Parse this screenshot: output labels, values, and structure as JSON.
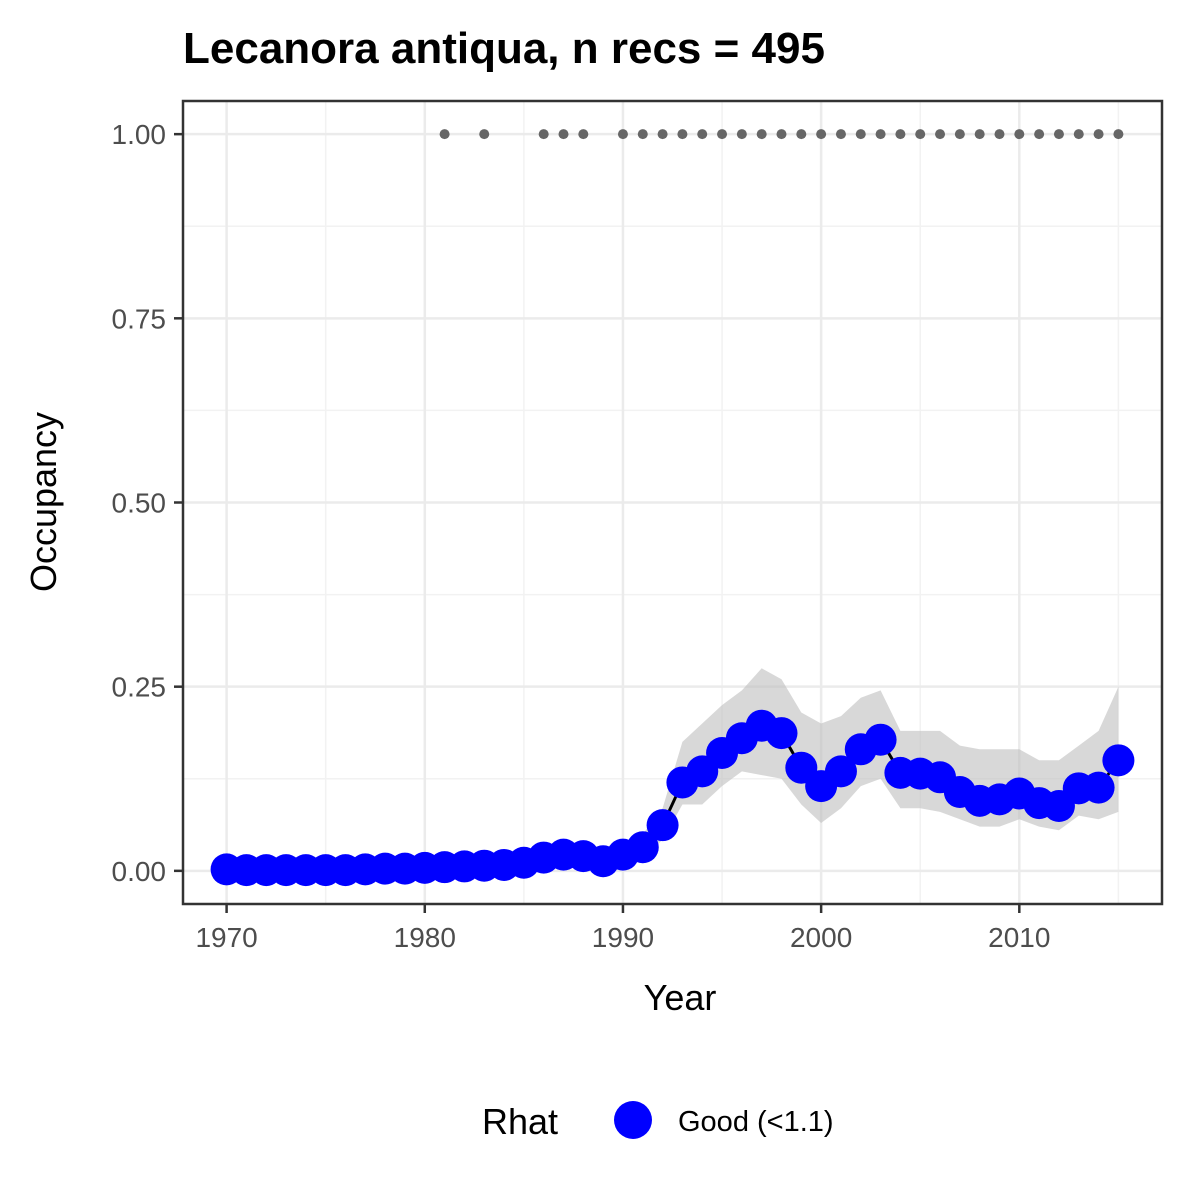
{
  "chart_data": {
    "type": "line",
    "title": "Lecanora antiqua, n recs = 495",
    "xlabel": "Year",
    "ylabel": "Occupancy",
    "xlim": [
      1967.8,
      2017.2
    ],
    "ylim": [
      -0.045,
      1.045
    ],
    "x_ticks": [
      1970,
      1980,
      1990,
      2000,
      2010
    ],
    "x_tick_labels": [
      "1970",
      "1980",
      "1990",
      "2000",
      "2010"
    ],
    "x_minor_ticks": [
      1975,
      1985,
      1995,
      2005,
      2015
    ],
    "y_ticks": [
      0,
      0.25,
      0.5,
      0.75,
      1.0
    ],
    "y_tick_labels": [
      "0.00",
      "0.25",
      "0.50",
      "0.75",
      "1.00"
    ],
    "y_minor_ticks": [
      0.125,
      0.375,
      0.625,
      0.875
    ],
    "grid": true,
    "legend": {
      "title": "Rhat",
      "position": "bottom",
      "entries": [
        {
          "label": "Good (<1.1)",
          "color": "#0000ff"
        }
      ]
    },
    "colors": {
      "series": "#0000ff",
      "line": "#000000",
      "ribbon": "#bebebe",
      "records": "#666666",
      "grid": "#ebebeb",
      "axis_text": "#4d4d4d"
    },
    "series": [
      {
        "name": "Good (<1.1)",
        "x": [
          1970,
          1971,
          1972,
          1973,
          1974,
          1975,
          1976,
          1977,
          1978,
          1979,
          1980,
          1981,
          1982,
          1983,
          1984,
          1985,
          1986,
          1987,
          1988,
          1989,
          1990,
          1991,
          1992,
          1993,
          1994,
          1995,
          1996,
          1997,
          1998,
          1999,
          2000,
          2001,
          2002,
          2003,
          2004,
          2005,
          2006,
          2007,
          2008,
          2009,
          2010,
          2011,
          2012,
          2013,
          2014,
          2015
        ],
        "y": [
          0.002,
          0.001,
          0.001,
          0.001,
          0.001,
          0.001,
          0.001,
          0.002,
          0.003,
          0.003,
          0.004,
          0.005,
          0.006,
          0.007,
          0.008,
          0.011,
          0.018,
          0.022,
          0.02,
          0.013,
          0.022,
          0.032,
          0.062,
          0.12,
          0.135,
          0.16,
          0.18,
          0.197,
          0.187,
          0.14,
          0.115,
          0.135,
          0.165,
          0.178,
          0.133,
          0.132,
          0.127,
          0.107,
          0.095,
          0.097,
          0.105,
          0.092,
          0.088,
          0.112,
          0.113,
          0.15
        ],
        "lower": [
          0.0,
          0.0,
          0.0,
          0.0,
          0.0,
          0.0,
          0.0,
          0.0,
          0.0,
          0.0,
          0.0,
          0.001,
          0.001,
          0.002,
          0.003,
          0.005,
          0.01,
          0.013,
          0.011,
          0.006,
          0.01,
          0.018,
          0.042,
          0.09,
          0.09,
          0.115,
          0.135,
          0.13,
          0.125,
          0.09,
          0.065,
          0.085,
          0.115,
          0.125,
          0.085,
          0.085,
          0.08,
          0.07,
          0.06,
          0.06,
          0.07,
          0.06,
          0.055,
          0.075,
          0.07,
          0.08
        ],
        "upper": [
          0.01,
          0.008,
          0.008,
          0.008,
          0.008,
          0.008,
          0.008,
          0.009,
          0.01,
          0.011,
          0.012,
          0.014,
          0.015,
          0.016,
          0.018,
          0.022,
          0.03,
          0.035,
          0.033,
          0.025,
          0.038,
          0.05,
          0.085,
          0.175,
          0.2,
          0.225,
          0.245,
          0.275,
          0.26,
          0.215,
          0.2,
          0.21,
          0.235,
          0.245,
          0.19,
          0.19,
          0.19,
          0.17,
          0.165,
          0.165,
          0.165,
          0.15,
          0.15,
          0.17,
          0.19,
          0.25
        ]
      }
    ],
    "record_years": [
      1981,
      1983,
      1986,
      1987,
      1988,
      1990,
      1991,
      1992,
      1993,
      1994,
      1995,
      1996,
      1997,
      1998,
      1999,
      2000,
      2001,
      2002,
      2003,
      2004,
      2005,
      2006,
      2007,
      2008,
      2009,
      2010,
      2011,
      2012,
      2013,
      2014,
      2015
    ],
    "record_value": 1.0
  }
}
